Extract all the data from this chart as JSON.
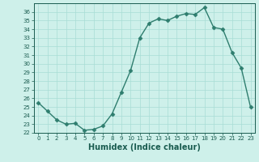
{
  "x": [
    0,
    1,
    2,
    3,
    4,
    5,
    6,
    7,
    8,
    9,
    10,
    11,
    12,
    13,
    14,
    15,
    16,
    17,
    18,
    19,
    20,
    21,
    22,
    23
  ],
  "y": [
    25.5,
    24.5,
    23.5,
    23.0,
    23.1,
    22.3,
    22.4,
    22.8,
    24.2,
    26.7,
    29.2,
    33.0,
    34.7,
    35.2,
    35.0,
    35.5,
    35.8,
    35.7,
    36.5,
    34.2,
    34.0,
    31.3,
    29.5,
    25.0
  ],
  "line_color": "#2e7d6e",
  "marker": "D",
  "markersize": 2.5,
  "linewidth": 1.0,
  "background_color": "#cef0ea",
  "grid_color": "#a8ddd5",
  "xlabel": "Humidex (Indice chaleur)",
  "ylim": [
    22,
    37
  ],
  "xlim": [
    -0.5,
    23.5
  ],
  "yticks": [
    22,
    23,
    24,
    25,
    26,
    27,
    28,
    29,
    30,
    31,
    32,
    33,
    34,
    35,
    36
  ],
  "xticks": [
    0,
    1,
    2,
    3,
    4,
    5,
    6,
    7,
    8,
    9,
    10,
    11,
    12,
    13,
    14,
    15,
    16,
    17,
    18,
    19,
    20,
    21,
    22,
    23
  ],
  "tick_fontsize": 5.0,
  "xlabel_fontsize": 7.0,
  "tick_color": "#1a5c50",
  "spine_color": "#1a5c50"
}
